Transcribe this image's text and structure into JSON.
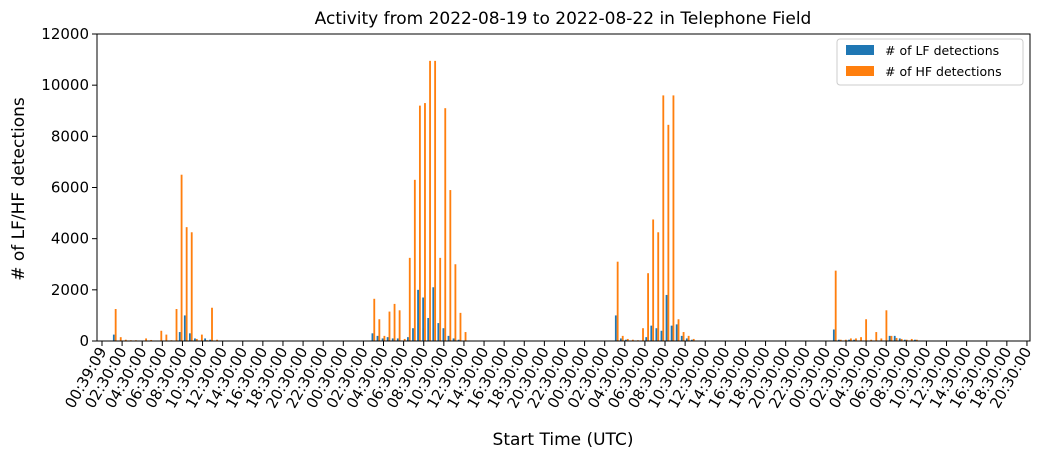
{
  "chart_data": {
    "type": "bar",
    "title": "Activity from 2022-08-19 to 2022-08-22 in Telephone Field",
    "xlabel": "Start Time (UTC)",
    "ylabel": "# of LF/HF detections",
    "ylim": [
      0,
      12000
    ],
    "yticks": [
      0,
      2000,
      4000,
      6000,
      8000,
      10000,
      12000
    ],
    "grid": false,
    "legend_position": "top-right",
    "x_tick_labels": [
      "00:39:09",
      "02:30:00",
      "04:30:00",
      "06:30:00",
      "08:30:00",
      "10:30:00",
      "12:30:00",
      "14:30:00",
      "16:30:00",
      "18:30:00",
      "20:30:00",
      "22:30:00",
      "00:30:00",
      "02:30:00",
      "04:30:00",
      "06:30:00",
      "08:30:00",
      "10:30:00",
      "12:30:00",
      "14:30:00",
      "16:30:00",
      "18:30:00",
      "20:30:00",
      "22:30:00",
      "00:30:00",
      "02:30:00",
      "04:30:00",
      "06:30:00",
      "08:30:00",
      "10:30:00",
      "12:30:00",
      "14:30:00",
      "16:30:00",
      "18:30:00",
      "20:30:00",
      "22:30:00",
      "00:30:00",
      "02:30:00",
      "04:30:00",
      "06:30:00",
      "08:30:00",
      "10:30:00",
      "12:30:00",
      "14:30:00",
      "16:30:00",
      "18:30:00",
      "20:30:00"
    ],
    "num_intervals": 184,
    "series": [
      {
        "name": "# of LF detections",
        "color": "#1f77b4",
        "points": [
          [
            3,
            250
          ],
          [
            4,
            0
          ],
          [
            5,
            0
          ],
          [
            6,
            0
          ],
          [
            7,
            0
          ],
          [
            8,
            0
          ],
          [
            9,
            0
          ],
          [
            10,
            0
          ],
          [
            11,
            0
          ],
          [
            12,
            0
          ],
          [
            13,
            0
          ],
          [
            14,
            0
          ],
          [
            15,
            0
          ],
          [
            16,
            350
          ],
          [
            17,
            1000
          ],
          [
            18,
            300
          ],
          [
            19,
            100
          ],
          [
            20,
            0
          ],
          [
            21,
            100
          ],
          [
            22,
            50
          ],
          [
            23,
            0
          ],
          [
            54,
            300
          ],
          [
            55,
            200
          ],
          [
            56,
            100
          ],
          [
            57,
            150
          ],
          [
            58,
            100
          ],
          [
            59,
            100
          ],
          [
            60,
            0
          ],
          [
            61,
            150
          ],
          [
            62,
            500
          ],
          [
            63,
            2000
          ],
          [
            64,
            1700
          ],
          [
            65,
            900
          ],
          [
            66,
            2100
          ],
          [
            67,
            700
          ],
          [
            68,
            500
          ],
          [
            69,
            200
          ],
          [
            70,
            100
          ],
          [
            71,
            50
          ],
          [
            102,
            1000
          ],
          [
            103,
            100
          ],
          [
            104,
            50
          ],
          [
            105,
            0
          ],
          [
            106,
            0
          ],
          [
            107,
            0
          ],
          [
            108,
            150
          ],
          [
            109,
            600
          ],
          [
            110,
            500
          ],
          [
            111,
            400
          ],
          [
            112,
            1800
          ],
          [
            113,
            600
          ],
          [
            114,
            650
          ],
          [
            115,
            200
          ],
          [
            116,
            100
          ],
          [
            117,
            50
          ],
          [
            145,
            450
          ],
          [
            146,
            50
          ],
          [
            147,
            0
          ],
          [
            148,
            50
          ],
          [
            149,
            50
          ],
          [
            150,
            0
          ],
          [
            151,
            0
          ],
          [
            152,
            0
          ],
          [
            153,
            0
          ],
          [
            154,
            0
          ],
          [
            155,
            0
          ],
          [
            156,
            200
          ],
          [
            157,
            200
          ],
          [
            158,
            100
          ],
          [
            159,
            50
          ],
          [
            160,
            0
          ],
          [
            161,
            50
          ]
        ]
      },
      {
        "name": "# of HF detections",
        "color": "#ff7f0e",
        "points": [
          [
            3,
            1250
          ],
          [
            4,
            150
          ],
          [
            5,
            50
          ],
          [
            6,
            30
          ],
          [
            7,
            30
          ],
          [
            8,
            20
          ],
          [
            9,
            100
          ],
          [
            10,
            40
          ],
          [
            11,
            20
          ],
          [
            12,
            400
          ],
          [
            13,
            250
          ],
          [
            14,
            30
          ],
          [
            15,
            1250
          ],
          [
            16,
            6500
          ],
          [
            17,
            4450
          ],
          [
            18,
            4250
          ],
          [
            19,
            80
          ],
          [
            20,
            250
          ],
          [
            21,
            30
          ],
          [
            22,
            1300
          ],
          [
            23,
            50
          ],
          [
            54,
            1650
          ],
          [
            55,
            850
          ],
          [
            56,
            200
          ],
          [
            57,
            1150
          ],
          [
            58,
            1450
          ],
          [
            59,
            1200
          ],
          [
            60,
            80
          ],
          [
            61,
            3250
          ],
          [
            62,
            6300
          ],
          [
            63,
            9200
          ],
          [
            64,
            9300
          ],
          [
            65,
            10950
          ],
          [
            66,
            10950
          ],
          [
            67,
            3250
          ],
          [
            68,
            9100
          ],
          [
            69,
            5900
          ],
          [
            70,
            3000
          ],
          [
            71,
            1100
          ],
          [
            72,
            350
          ],
          [
            102,
            3100
          ],
          [
            103,
            200
          ],
          [
            104,
            80
          ],
          [
            105,
            50
          ],
          [
            106,
            30
          ],
          [
            107,
            500
          ],
          [
            108,
            2650
          ],
          [
            109,
            4750
          ],
          [
            110,
            4250
          ],
          [
            111,
            9600
          ],
          [
            112,
            8450
          ],
          [
            113,
            9600
          ],
          [
            114,
            850
          ],
          [
            115,
            350
          ],
          [
            116,
            200
          ],
          [
            117,
            80
          ],
          [
            145,
            2750
          ],
          [
            146,
            50
          ],
          [
            147,
            50
          ],
          [
            148,
            100
          ],
          [
            149,
            100
          ],
          [
            150,
            150
          ],
          [
            151,
            850
          ],
          [
            152,
            50
          ],
          [
            153,
            350
          ],
          [
            154,
            100
          ],
          [
            155,
            1200
          ],
          [
            156,
            200
          ],
          [
            157,
            120
          ],
          [
            158,
            80
          ],
          [
            159,
            50
          ],
          [
            160,
            80
          ],
          [
            161,
            50
          ]
        ]
      }
    ]
  }
}
